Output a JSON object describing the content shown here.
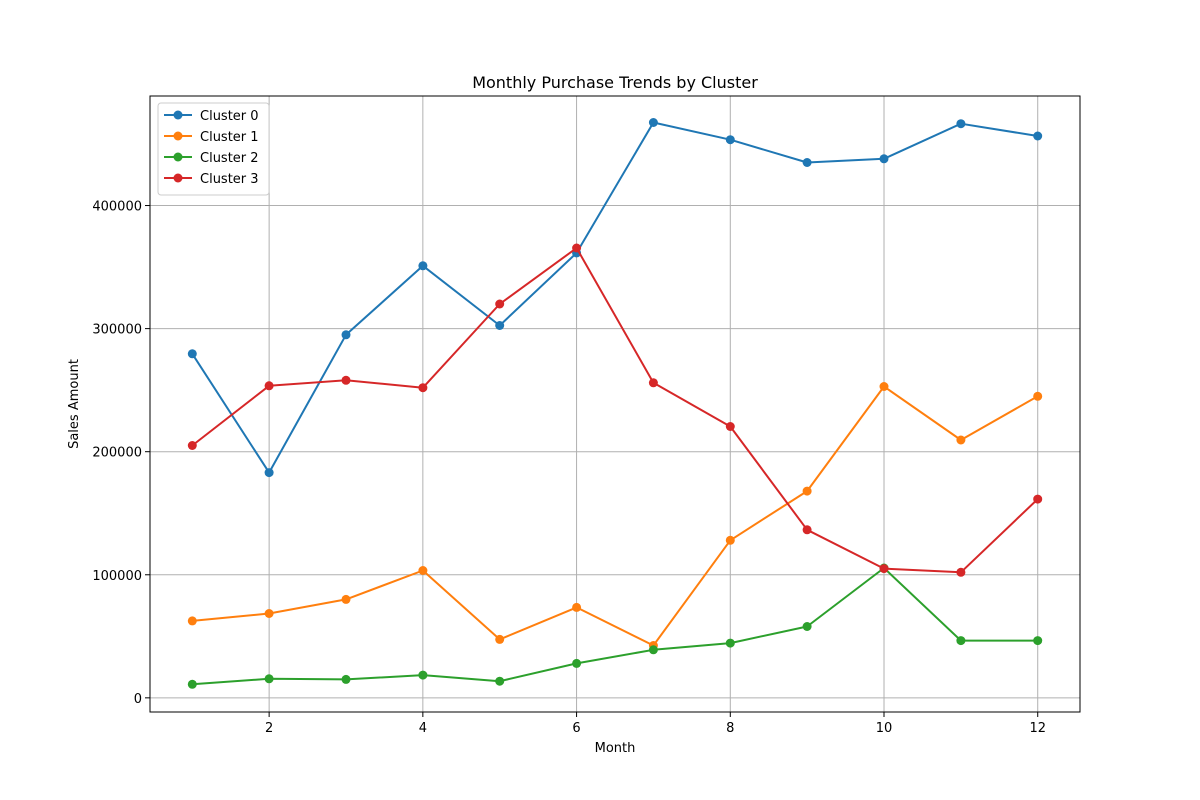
{
  "chart_data": {
    "type": "line",
    "title": "Monthly Purchase Trends by Cluster",
    "xlabel": "Month",
    "ylabel": "Sales Amount",
    "xlim": [
      0.45,
      12.55
    ],
    "ylim": [
      -11500,
      489000
    ],
    "xticks": [
      2,
      4,
      6,
      8,
      10,
      12
    ],
    "yticks": [
      0,
      100000,
      200000,
      300000,
      400000
    ],
    "grid": true,
    "legend_position": "top-left",
    "x": [
      1,
      2,
      3,
      4,
      5,
      6,
      7,
      8,
      9,
      10,
      11,
      12
    ],
    "series": [
      {
        "name": "Cluster 0",
        "color": "#1f77b4",
        "values": [
          279500,
          183000,
          295000,
          351000,
          302500,
          361500,
          467500,
          453500,
          435000,
          438000,
          466500,
          456500
        ]
      },
      {
        "name": "Cluster 1",
        "color": "#ff7f0e",
        "values": [
          62500,
          68500,
          80000,
          103500,
          47500,
          73500,
          42500,
          128000,
          168000,
          253000,
          209500,
          245000
        ]
      },
      {
        "name": "Cluster 2",
        "color": "#2ca02c",
        "values": [
          11000,
          15500,
          15000,
          18500,
          13500,
          28000,
          39000,
          44500,
          58000,
          105500,
          46500,
          46500
        ]
      },
      {
        "name": "Cluster 3",
        "color": "#d62728",
        "values": [
          205000,
          253500,
          258000,
          252000,
          320000,
          365500,
          256000,
          220500,
          136500,
          105000,
          102000,
          161500
        ]
      }
    ]
  }
}
